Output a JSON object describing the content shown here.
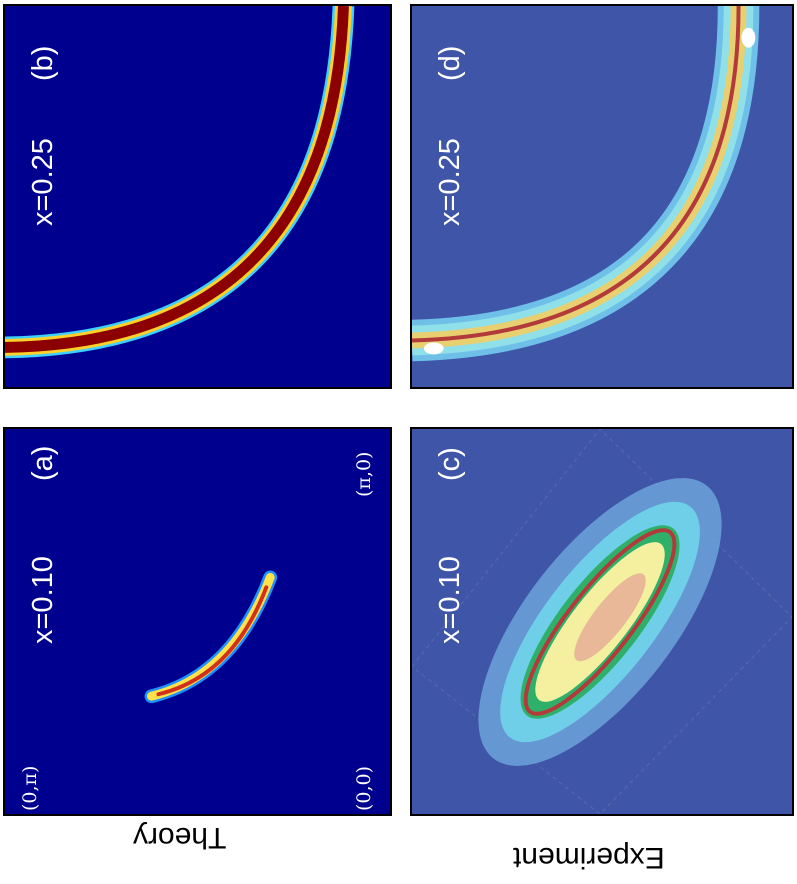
{
  "panels": {
    "a": {
      "letter": "(a)",
      "doping": "x=0.10",
      "corner_top_left": "(0,π)",
      "corner_bottom_left": "(0,0)",
      "corner_bottom_right": "(π,0)"
    },
    "b": {
      "letter": "(b)",
      "doping": "x=0.25"
    },
    "c": {
      "letter": "(c)",
      "doping": "x=0.10"
    },
    "d": {
      "letter": "(d)",
      "doping": "x=0.25"
    }
  },
  "row_labels": {
    "theory": "Theory",
    "experiment": "Experiment"
  },
  "colors": {
    "theory_bg": "#00008f",
    "experiment_bg": "#3f55a8",
    "fit_line": "#b23a3a"
  }
}
